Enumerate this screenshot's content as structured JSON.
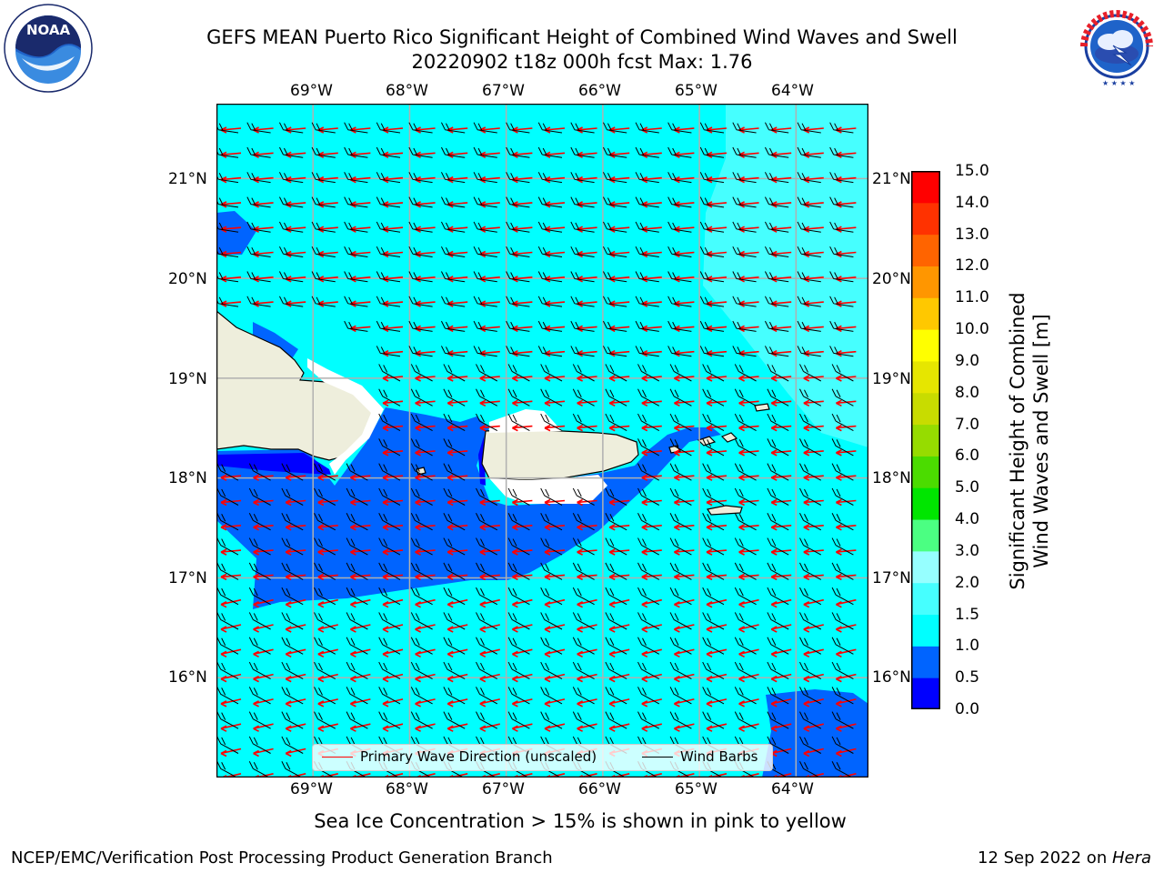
{
  "header": {
    "title_line1": "GEFS MEAN Puerto Rico Significant Height of Combined Wind Waves and Swell",
    "title_line2": "20220902 t18z 000h fcst   Max: 1.76"
  },
  "logos": {
    "noaa_text": "NOAA",
    "noaa_ring_top": "NATIONAL OCEANIC AND ATMOSPHERIC ADMINISTRATION",
    "noaa_ring_bottom": "U.S. DEPARTMENT OF COMMERCE",
    "nws_ring": "NATIONAL WEATHER SERVICE"
  },
  "map": {
    "lon_ticks": [
      "69°W",
      "68°W",
      "67°W",
      "66°W",
      "65°W",
      "64°W"
    ],
    "lat_ticks": [
      "21°N",
      "20°N",
      "19°N",
      "18°N",
      "17°N",
      "16°N"
    ],
    "lon_range": [
      -70.0,
      -63.25
    ],
    "lat_range": [
      15.0,
      21.75
    ],
    "grid": true,
    "colors": {
      "land": "#eeeedc",
      "band_0_5": "#0000ff",
      "band_0_5_1": "#0064ff",
      "band_1_1_5": "#00ffff",
      "band_1_5_2": "#46ffff",
      "band_2_3": "#96ffff",
      "wave_arrow": "#ff0000",
      "wind_barb": "#000000"
    },
    "legend": {
      "wave_label": "Primary Wave Direction (unscaled)",
      "barb_label": "Wind Barbs",
      "placement": "lower-center"
    }
  },
  "colorbar": {
    "label_line1": "Significant Height of Combined",
    "label_line2": "Wind Waves and Swell [m]",
    "ticks": [
      "0.0",
      "0.5",
      "1.0",
      "1.5",
      "2.0",
      "3.0",
      "4.0",
      "5.0",
      "6.0",
      "7.0",
      "8.0",
      "9.0",
      "10.0",
      "11.0",
      "12.0",
      "13.0",
      "14.0",
      "15.0"
    ],
    "colors": [
      "#0000ff",
      "#0064ff",
      "#00ffff",
      "#46ffff",
      "#96ffff",
      "#4bff82",
      "#00e600",
      "#4bdc00",
      "#96dc00",
      "#c8dc00",
      "#e6e600",
      "#ffff00",
      "#ffc800",
      "#ff9600",
      "#ff6400",
      "#ff3200",
      "#ff0000"
    ]
  },
  "notes": {
    "sea_ice": "Sea Ice Concentration > 15% is shown in pink to yellow"
  },
  "footer": {
    "left": "NCEP/EMC/Verification Post Processing Product Generation Branch",
    "right_prefix": "12 Sep 2022 on ",
    "right_host": "Hera"
  }
}
